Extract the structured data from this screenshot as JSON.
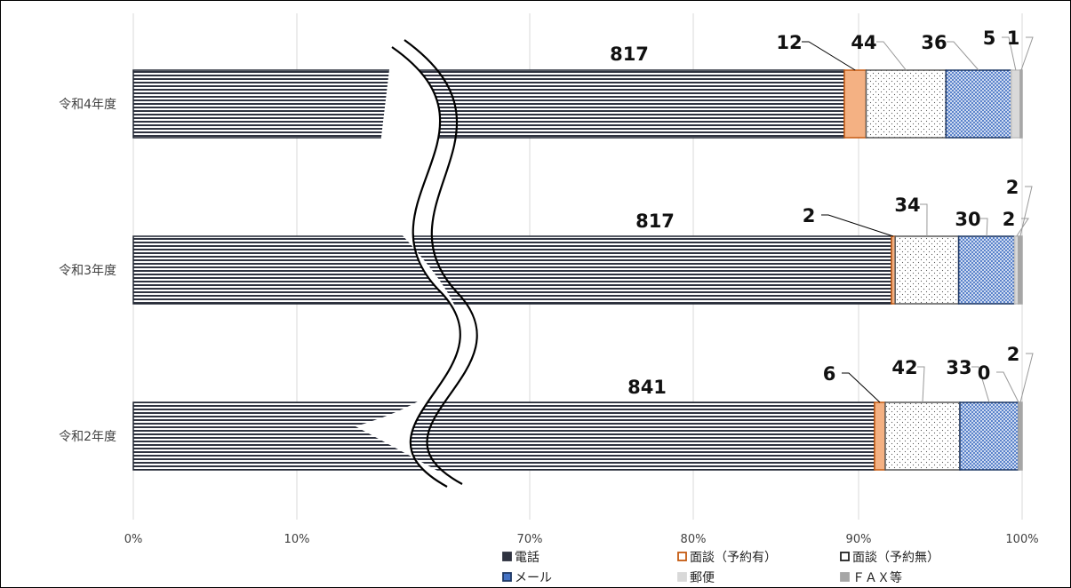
{
  "chart_data": {
    "type": "bar",
    "orientation": "horizontal",
    "stacked": "percent",
    "axis_break": true,
    "categories": [
      "令和4年度",
      "令和3年度",
      "令和2年度"
    ],
    "x_ticks": [
      "0%",
      "10%",
      "70%",
      "80%",
      "90%",
      "100%"
    ],
    "series": [
      {
        "name": "電話",
        "values": [
          817,
          817,
          841
        ],
        "color": "#2f3340"
      },
      {
        "name": "面談（予約有）",
        "values": [
          12,
          2,
          6
        ],
        "color": "#f4b183"
      },
      {
        "name": "面談（予約無）",
        "values": [
          44,
          34,
          42
        ],
        "color": "#ffffff"
      },
      {
        "name": "メール",
        "values": [
          36,
          30,
          33
        ],
        "color": "#4472c4"
      },
      {
        "name": "郵便",
        "values": [
          5,
          2,
          0
        ],
        "color": "#d9d9d9"
      },
      {
        "name": "ＦＡＸ等",
        "values": [
          1,
          2,
          2
        ],
        "color": "#a6a6a6"
      }
    ],
    "legend_position": "bottom",
    "grid": true
  }
}
